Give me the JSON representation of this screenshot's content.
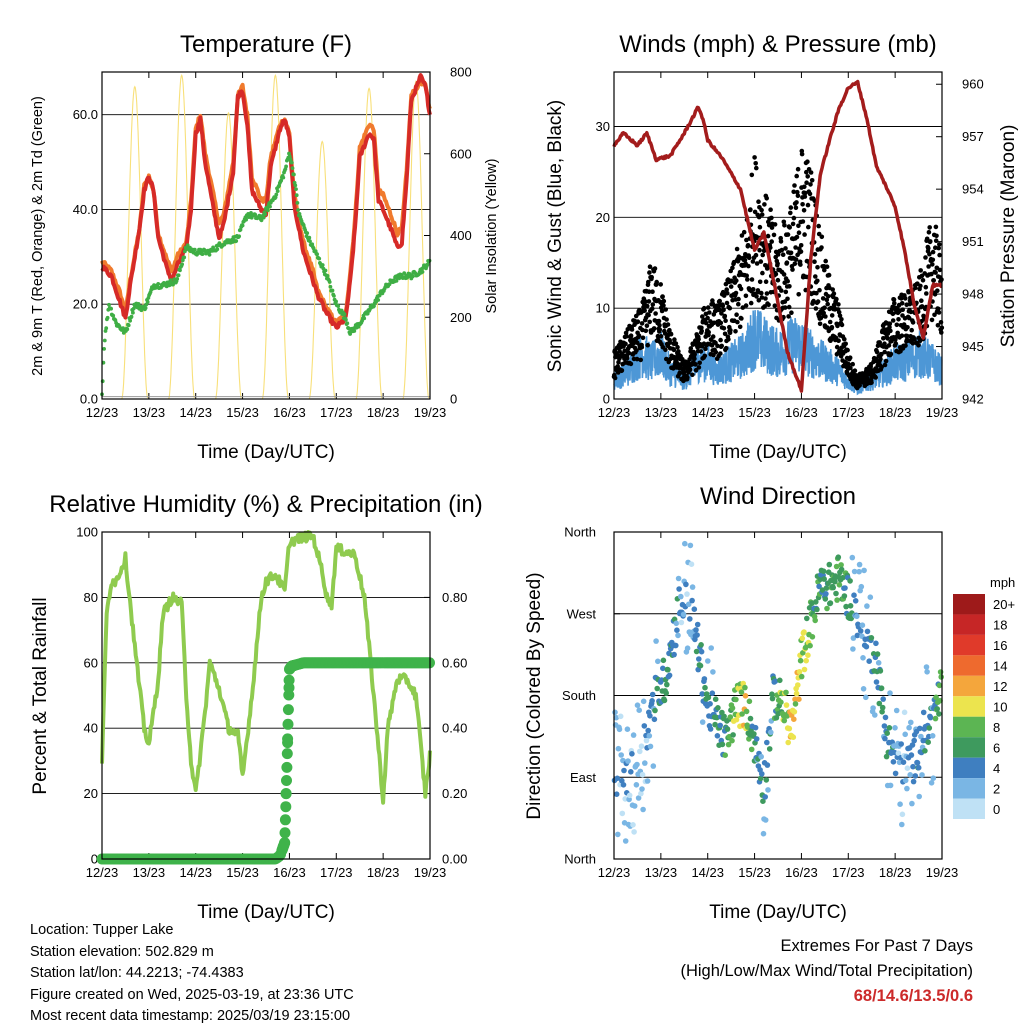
{
  "meta": {
    "location": "Location: Tupper Lake",
    "elevation": "Station elevation: 502.829 m",
    "latlon": "Station lat/lon: 44.2213; -74.4383",
    "created": "Figure created on Wed, 2025-03-19, at 23:36 UTC",
    "recent": "Most recent data timestamp: 2025/03/19 23:15:00"
  },
  "extremes": {
    "title": "Extremes For Past 7 Days",
    "subtitle": "(High/Low/Max Wind/Total Precipitation)",
    "values": "68/14.6/13.5/0.6",
    "color": "#cc2a2a"
  },
  "colors": {
    "temp_2m": "#d62a27",
    "temp_9m": "#f07a2d",
    "dewpoint": "#3fae45",
    "insolation": "#f8e07a",
    "wind": "#4d97d6",
    "gust": "#000000",
    "pressure": "#a31c1c",
    "rh": "#8fcb4f",
    "precip": "#3fb34a"
  },
  "chart_data": [
    {
      "id": "temperature",
      "type": "line",
      "title": "Temperature (F)",
      "xlabel": "Time (Day/UTC)",
      "ylabel": "2m & 9m T (Red, Orange) & 2m Td (Green)",
      "y2label": "Solar Insolation (Yellow)",
      "xticks": [
        "12/23",
        "13/23",
        "14/23",
        "15/23",
        "16/23",
        "17/23",
        "18/23",
        "19/23"
      ],
      "yticks": [
        "0.0",
        "20.0",
        "40.0",
        "60.0"
      ],
      "y2ticks": [
        "0",
        "200",
        "400",
        "600",
        "800"
      ],
      "xlim": [
        0,
        7
      ],
      "ylim": [
        0,
        69
      ],
      "y2lim": [
        0,
        800
      ],
      "grid": "horizontal",
      "series": [
        {
          "key": "t2m",
          "x": [
            0,
            0.2,
            0.4,
            0.5,
            0.6,
            0.8,
            0.9,
            1.0,
            1.1,
            1.2,
            1.4,
            1.5,
            1.6,
            1.8,
            1.9,
            2.0,
            2.1,
            2.2,
            2.4,
            2.5,
            2.6,
            2.8,
            2.9,
            3.0,
            3.1,
            3.2,
            3.4,
            3.5,
            3.6,
            3.8,
            3.9,
            4.0,
            4.1,
            4.3,
            4.5,
            4.6,
            4.8,
            5.0,
            5.2,
            5.3,
            5.4,
            5.5,
            5.7,
            5.8,
            5.9,
            6.0,
            6.2,
            6.3,
            6.4,
            6.5,
            6.6,
            6.8,
            6.9,
            7.0
          ],
          "y": [
            28,
            26,
            20,
            17,
            24,
            36,
            44,
            47,
            44,
            34,
            27,
            25,
            28,
            32,
            40,
            56,
            59,
            50,
            39,
            34,
            37,
            48,
            64,
            65,
            58,
            44,
            40,
            39,
            49,
            57,
            59,
            55,
            41,
            31,
            25,
            22,
            18,
            15,
            17,
            25,
            36,
            51,
            56,
            55,
            42,
            40,
            35,
            32,
            33,
            46,
            63,
            68,
            66,
            60
          ]
        },
        {
          "key": "t9m",
          "x": [
            0,
            0.2,
            0.4,
            0.5,
            0.6,
            0.8,
            0.9,
            1.0,
            1.1,
            1.2,
            1.4,
            1.5,
            1.6,
            1.8,
            1.9,
            2.0,
            2.1,
            2.2,
            2.4,
            2.5,
            2.6,
            2.8,
            2.9,
            3.0,
            3.1,
            3.2,
            3.4,
            3.5,
            3.6,
            3.8,
            3.9,
            4.0,
            4.1,
            4.3,
            4.5,
            4.6,
            4.8,
            5.0,
            5.2,
            5.3,
            5.4,
            5.5,
            5.7,
            5.8,
            5.9,
            6.0,
            6.2,
            6.3,
            6.4,
            6.5,
            6.6,
            6.8,
            6.9,
            7.0
          ],
          "y": [
            29,
            27,
            22,
            18,
            25,
            36,
            45,
            47,
            44,
            35,
            29,
            27,
            30,
            33,
            42,
            57,
            60,
            52,
            42,
            37,
            39,
            50,
            64,
            66,
            60,
            47,
            42,
            42,
            51,
            58,
            59,
            56,
            43,
            33,
            27,
            23,
            19,
            16,
            18,
            27,
            38,
            53,
            58,
            57,
            44,
            43,
            38,
            35,
            36,
            48,
            64,
            67,
            66,
            61
          ]
        },
        {
          "key": "td",
          "x": [
            0,
            0.05,
            0.15,
            0.3,
            0.5,
            0.7,
            0.9,
            1.1,
            1.3,
            1.6,
            1.8,
            2.0,
            2.3,
            2.6,
            2.9,
            3.1,
            3.4,
            3.7,
            3.9,
            4.0,
            4.1,
            4.2,
            4.4,
            4.6,
            4.8,
            5.0,
            5.2,
            5.3,
            5.5,
            5.8,
            6.0,
            6.2,
            6.4,
            6.6,
            6.8,
            7.0
          ],
          "y": [
            1,
            12,
            20,
            16,
            14,
            20,
            19,
            24,
            24,
            25,
            32,
            31,
            31,
            33,
            34,
            39,
            38,
            43,
            48,
            52,
            47,
            39,
            34,
            30,
            26,
            20,
            17,
            14,
            16,
            20,
            23,
            25,
            26,
            26,
            27,
            29
          ]
        }
      ],
      "insolation": {
        "peaks_x": [
          0.7,
          1.7,
          2.7,
          3.7,
          4.7,
          5.7,
          6.7
        ],
        "peaks_w": [
          764,
          792,
          700,
          792,
          630,
          760,
          777
        ],
        "y_unit": "W/m2"
      }
    },
    {
      "id": "winds",
      "type": "scatter",
      "title": "Winds (mph) & Pressure (mb)",
      "xlabel": "Time (Day/UTC)",
      "ylabel": "Sonic Wind & Gust (Blue, Black)",
      "y2label": "Station Pressure (Maroon)",
      "xticks": [
        "12/23",
        "13/23",
        "14/23",
        "15/23",
        "16/23",
        "17/23",
        "18/23",
        "19/23"
      ],
      "yticks": [
        "0",
        "10",
        "20",
        "30"
      ],
      "y2ticks": [
        "942",
        "945",
        "948",
        "951",
        "954",
        "957",
        "960"
      ],
      "xlim": [
        0,
        7
      ],
      "ylim": [
        0,
        36
      ],
      "y2lim": [
        942,
        960.7
      ],
      "grid": "horizontal",
      "series": [
        {
          "key": "wind_level",
          "x": [
            0,
            0.3,
            0.6,
            0.8,
            1.0,
            1.2,
            1.5,
            1.8,
            2.0,
            2.2,
            2.5,
            2.8,
            3.0,
            3.2,
            3.5,
            3.8,
            4.0,
            4.2,
            4.5,
            4.8,
            5.0,
            5.2,
            5.5,
            5.8,
            6.0,
            6.2,
            6.5,
            6.8,
            7.0
          ],
          "y": [
            2,
            3,
            5,
            4,
            5,
            3,
            2,
            4,
            4,
            3,
            4,
            5,
            7,
            6,
            5,
            6,
            6,
            5,
            4,
            3,
            2,
            1,
            2,
            3,
            4,
            4,
            5,
            4,
            3
          ]
        },
        {
          "key": "gust_level",
          "x": [
            0,
            0.3,
            0.6,
            0.8,
            1.0,
            1.2,
            1.5,
            1.8,
            2.0,
            2.2,
            2.5,
            2.8,
            3.0,
            3.2,
            3.5,
            3.8,
            4.0,
            4.2,
            4.5,
            4.8,
            5.0,
            5.2,
            5.5,
            5.8,
            6.0,
            6.2,
            6.5,
            6.8,
            7.0
          ],
          "y": [
            4,
            6,
            8,
            12,
            10,
            6,
            3,
            6,
            9,
            8,
            11,
            15,
            21,
            18,
            14,
            17,
            22,
            20,
            12,
            8,
            4,
            2,
            3,
            7,
            9,
            9,
            10,
            16,
            12
          ]
        },
        {
          "key": "pressure",
          "x": [
            0,
            0.2,
            0.5,
            0.7,
            0.9,
            1.2,
            1.5,
            1.8,
            1.9,
            2.0,
            2.3,
            2.7,
            3.0,
            3.2,
            3.5,
            3.7,
            4.0,
            4.2,
            4.4,
            4.6,
            4.8,
            5.0,
            5.2,
            5.4,
            5.6,
            5.8,
            6.0,
            6.2,
            6.4,
            6.6,
            6.8,
            7.0
          ],
          "y": [
            956.5,
            957.2,
            956.5,
            957.2,
            955.7,
            955.9,
            957.2,
            958.7,
            958.0,
            956.8,
            955.8,
            954.0,
            950.5,
            951.5,
            947.5,
            944.7,
            942.5,
            950.0,
            954.8,
            956.8,
            958.6,
            959.8,
            960.1,
            958.0,
            955.3,
            954.2,
            953.0,
            950.5,
            947.5,
            945.5,
            948.5,
            948.5
          ]
        }
      ]
    },
    {
      "id": "humidity",
      "type": "line",
      "title": "Relative Humidity (%) & Precipitation (in)",
      "xlabel": "Time (Day/UTC)",
      "ylabel": "Percent & Total Rainfall",
      "xticks": [
        "12/23",
        "13/23",
        "14/23",
        "15/23",
        "16/23",
        "17/23",
        "18/23",
        "19/23"
      ],
      "yticks": [
        "0",
        "20",
        "40",
        "60",
        "80",
        "100"
      ],
      "y2ticks": [
        "0.00",
        "0.20",
        "0.40",
        "0.60",
        "0.80"
      ],
      "xlim": [
        0,
        7
      ],
      "ylim": [
        0,
        100
      ],
      "y2lim": [
        0,
        1.0
      ],
      "grid": "horizontal",
      "series": [
        {
          "key": "rh",
          "x": [
            0,
            0.1,
            0.2,
            0.3,
            0.5,
            0.7,
            0.9,
            1.0,
            1.2,
            1.3,
            1.5,
            1.7,
            1.8,
            1.9,
            2.0,
            2.2,
            2.3,
            2.5,
            2.7,
            2.9,
            3.0,
            3.2,
            3.4,
            3.5,
            3.7,
            3.9,
            4.0,
            4.2,
            4.5,
            4.7,
            4.8,
            4.9,
            5.0,
            5.2,
            5.4,
            5.6,
            5.8,
            6.0,
            6.1,
            6.3,
            6.5,
            6.7,
            6.9,
            7.0
          ],
          "y": [
            30,
            75,
            85,
            85,
            92,
            65,
            40,
            35,
            55,
            75,
            80,
            78,
            50,
            30,
            20,
            45,
            60,
            52,
            40,
            38,
            25,
            50,
            80,
            85,
            87,
            82,
            97,
            98,
            99,
            88,
            80,
            78,
            95,
            94,
            93,
            80,
            50,
            18,
            40,
            55,
            55,
            50,
            20,
            32
          ]
        },
        {
          "key": "precip",
          "x": [
            0,
            3.7,
            3.8,
            3.9,
            3.95,
            4.0,
            4.05,
            4.3,
            4.6,
            5.0,
            6.0,
            7.0
          ],
          "y": [
            0,
            0,
            0.01,
            0.05,
            0.3,
            0.58,
            0.59,
            0.6,
            0.6,
            0.6,
            0.6,
            0.6
          ]
        }
      ]
    },
    {
      "id": "wind_direction",
      "type": "scatter",
      "title": "Wind Direction",
      "xlabel": "Time (Day/UTC)",
      "ylabel": "Direction (Colored By Speed)",
      "xticks": [
        "12/23",
        "13/23",
        "14/23",
        "15/23",
        "16/23",
        "17/23",
        "18/23",
        "19/23"
      ],
      "yticks": [
        "North",
        "East",
        "South",
        "West",
        "North"
      ],
      "xlim": [
        0,
        7
      ],
      "ylim": [
        0,
        360
      ],
      "legend": {
        "title": "mph",
        "labels": [
          "20+",
          "18",
          "16",
          "14",
          "12",
          "10",
          "8",
          "6",
          "4",
          "2",
          "0"
        ],
        "colors": [
          "#9e1a1a",
          "#c62626",
          "#e03a2a",
          "#ee6a2e",
          "#f4a63c",
          "#ece44e",
          "#5cb553",
          "#3e9a5e",
          "#3f7fc0",
          "#7ab6e4",
          "#bfe1f5"
        ],
        "position": "right"
      },
      "series": [
        {
          "key": "direction_trend",
          "x": [
            0,
            0.3,
            0.6,
            0.9,
            1.1,
            1.4,
            1.6,
            1.8,
            2.0,
            2.2,
            2.4,
            2.6,
            2.8,
            3.0,
            3.2,
            3.4,
            3.6,
            3.8,
            4.0,
            4.2,
            4.4,
            4.6,
            4.8,
            5.0,
            5.2,
            5.4,
            5.6,
            5.8,
            6.0,
            6.2,
            6.4,
            6.6,
            6.8,
            7.0
          ],
          "y": [
            100,
            80,
            120,
            180,
            200,
            280,
            290,
            230,
            170,
            150,
            130,
            170,
            170,
            130,
            80,
            180,
            170,
            140,
            220,
            260,
            300,
            300,
            310,
            290,
            270,
            240,
            220,
            140,
            110,
            100,
            110,
            140,
            150,
            190
          ],
          "speed": [
            3,
            2,
            2,
            4,
            6,
            3,
            2,
            4,
            4,
            5,
            6,
            9,
            10,
            4,
            3,
            5,
            9,
            11,
            9,
            7,
            6,
            6,
            7,
            5,
            3,
            3,
            4,
            5,
            3,
            2,
            3,
            4,
            4,
            8
          ]
        }
      ]
    }
  ]
}
